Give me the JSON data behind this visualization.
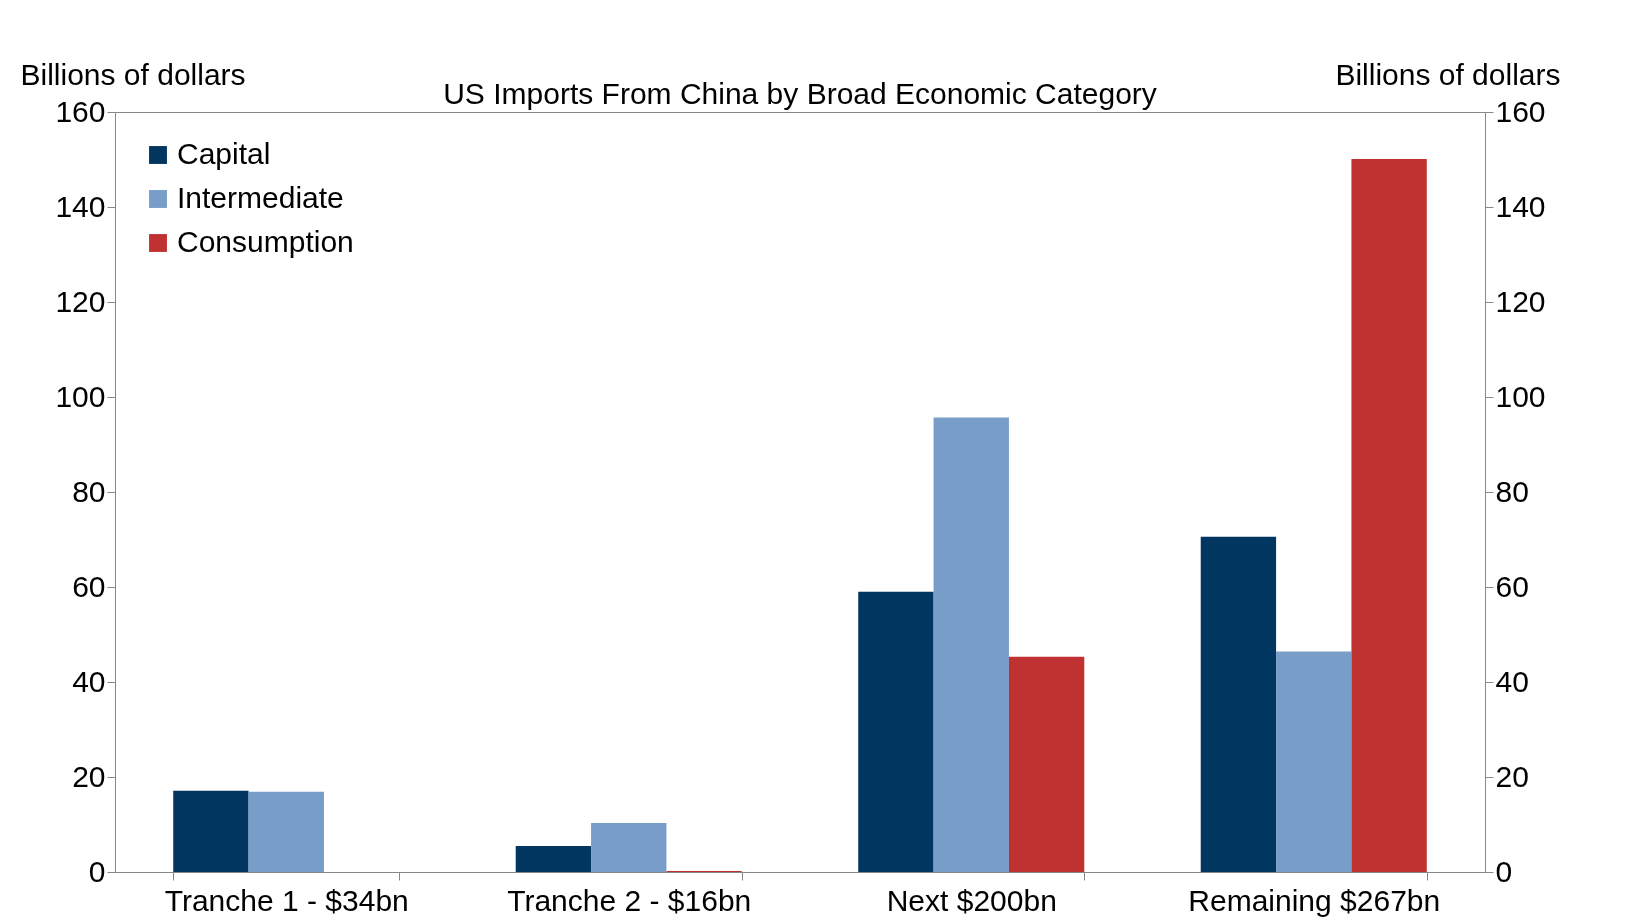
{
  "chart_data": {
    "type": "bar",
    "title": "US Imports From China by Broad Economic Category",
    "ylabel": "Billions of dollars",
    "y2label": "Billions of dollars",
    "categories": [
      "Tranche 1 - $34bn",
      "Tranche 2 - $16bn",
      "Next $200bn",
      "Remaining $267bn"
    ],
    "series": [
      {
        "name": "Capital",
        "color": "#003660",
        "values": [
          17.1,
          5.5,
          59.0,
          70.6
        ]
      },
      {
        "name": "Intermediate",
        "color": "#779dc8",
        "values": [
          16.9,
          10.3,
          95.7,
          46.4
        ]
      },
      {
        "name": "Consumption",
        "color": "#c03232",
        "values": [
          0,
          0.2,
          45.3,
          150.1
        ]
      }
    ],
    "ylim": [
      0,
      160
    ],
    "yticks": [
      0,
      20,
      40,
      60,
      80,
      100,
      120,
      140,
      160
    ],
    "y2lim": [
      0,
      160
    ],
    "y2ticks": [
      0,
      20,
      40,
      60,
      80,
      100,
      120,
      140,
      160
    ],
    "grid": false,
    "legend": "top left"
  }
}
